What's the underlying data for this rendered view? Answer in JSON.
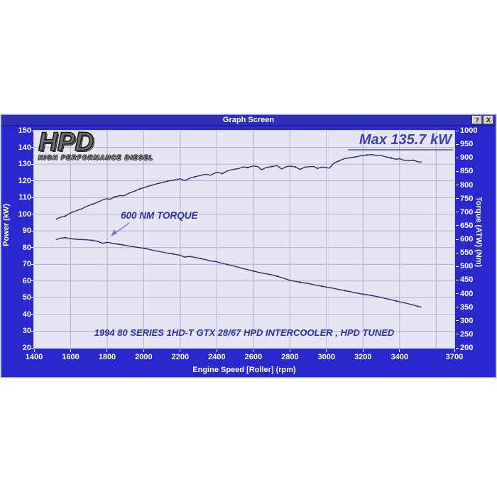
{
  "window": {
    "title": "Graph Screen",
    "help_glyph": "?",
    "close_glyph": "X"
  },
  "logo": {
    "text": "HPD",
    "subtext": "HIGH PERFORMANCE DIESEL"
  },
  "annotations": {
    "max_power": "Max 135.7 kW",
    "max_power_value_kw": 135.7,
    "torque_label": "600 NM TORQUE",
    "vehicle": "1994 80 SERIES 1HD-T GTX 28/67 HPD INTERCOOLER , HPD TUNED"
  },
  "colors": {
    "window_blue": "#2828CC",
    "titlebar_blue": "#2F2FB6",
    "plot_background": "#E5E5F3",
    "gridline": "#B0B0CE",
    "curve": "#2B2B68",
    "annotation_navy": "#31319A",
    "max_annotation": "#3E3EB2",
    "axis_text": "#FFFFFF"
  },
  "chart_data": {
    "type": "line",
    "title": "Graph Screen",
    "xlabel": "Engine Speed [Roller] (rpm)",
    "ylabel_left": "Power (kW)",
    "ylabel_right": "Torque (ATW) (Nm)",
    "x_range": [
      1400,
      3700
    ],
    "x_ticks": [
      1400,
      1600,
      1800,
      2000,
      2200,
      2400,
      2600,
      2800,
      3000,
      3200,
      3400,
      3700
    ],
    "y_left_range": [
      20,
      150
    ],
    "y_left_ticks": [
      20,
      30,
      40,
      50,
      60,
      70,
      80,
      90,
      100,
      110,
      120,
      130,
      140,
      150
    ],
    "y_right_range": [
      200,
      1000
    ],
    "y_right_ticks": [
      200,
      250,
      300,
      350,
      400,
      450,
      500,
      550,
      600,
      650,
      700,
      750,
      800,
      850,
      900,
      950,
      1000
    ],
    "grid": {
      "x_step": 200,
      "y_left_step": 10,
      "grid_on": true
    },
    "legend_position": "none",
    "series": [
      {
        "name": "Power",
        "axis": "left",
        "units": "kW",
        "max_value": 135.7,
        "points": [
          [
            1520,
            97
          ],
          [
            1545,
            98.2
          ],
          [
            1570,
            98.8
          ],
          [
            1600,
            100.8
          ],
          [
            1630,
            102
          ],
          [
            1660,
            103.2
          ],
          [
            1690,
            104.8
          ],
          [
            1720,
            106
          ],
          [
            1750,
            107.3
          ],
          [
            1780,
            108.8
          ],
          [
            1800,
            109.3
          ],
          [
            1815,
            108.9
          ],
          [
            1840,
            110.3
          ],
          [
            1870,
            111.2
          ],
          [
            1890,
            111
          ],
          [
            1920,
            112.6
          ],
          [
            1950,
            113.8
          ],
          [
            1980,
            115.2
          ],
          [
            2010,
            116.2
          ],
          [
            2040,
            117.2
          ],
          [
            2070,
            118.2
          ],
          [
            2100,
            118.9
          ],
          [
            2130,
            119.8
          ],
          [
            2160,
            120.3
          ],
          [
            2200,
            121.2
          ],
          [
            2225,
            120.1
          ],
          [
            2250,
            121.5
          ],
          [
            2280,
            122.4
          ],
          [
            2310,
            123.2
          ],
          [
            2340,
            123.9
          ],
          [
            2365,
            123.3
          ],
          [
            2400,
            125.2
          ],
          [
            2430,
            124.3
          ],
          [
            2460,
            126
          ],
          [
            2490,
            126.8
          ],
          [
            2520,
            127.3
          ],
          [
            2545,
            128.3
          ],
          [
            2570,
            127.9
          ],
          [
            2600,
            128.9
          ],
          [
            2625,
            128.4
          ],
          [
            2645,
            126.6
          ],
          [
            2670,
            127.9
          ],
          [
            2700,
            128.5
          ],
          [
            2730,
            129
          ],
          [
            2755,
            127.1
          ],
          [
            2780,
            128.4
          ],
          [
            2800,
            128.8
          ],
          [
            2830,
            128.3
          ],
          [
            2855,
            126.8
          ],
          [
            2880,
            128.1
          ],
          [
            2900,
            128.4
          ],
          [
            2930,
            128.6
          ],
          [
            2950,
            127.4
          ],
          [
            2975,
            128.2
          ],
          [
            3000,
            127.9
          ],
          [
            3015,
            127.5
          ],
          [
            3040,
            130.5
          ],
          [
            3070,
            132
          ],
          [
            3100,
            133.3
          ],
          [
            3130,
            133.8
          ],
          [
            3160,
            134.3
          ],
          [
            3190,
            135
          ],
          [
            3220,
            135.4
          ],
          [
            3245,
            135.7
          ],
          [
            3270,
            135.3
          ],
          [
            3300,
            135.1
          ],
          [
            3330,
            134.2
          ],
          [
            3355,
            133.6
          ],
          [
            3380,
            132.9
          ],
          [
            3400,
            133.2
          ],
          [
            3420,
            132.4
          ],
          [
            3450,
            132
          ],
          [
            3475,
            132.3
          ],
          [
            3500,
            131.4
          ],
          [
            3520,
            131.2
          ]
        ]
      },
      {
        "name": "Torque",
        "axis": "right",
        "units": "Nm",
        "max_value": 606,
        "points": [
          [
            1520,
            599
          ],
          [
            1545,
            604
          ],
          [
            1570,
            606
          ],
          [
            1600,
            602
          ],
          [
            1630,
            600
          ],
          [
            1660,
            599
          ],
          [
            1690,
            598
          ],
          [
            1720,
            596
          ],
          [
            1750,
            592
          ],
          [
            1775,
            585
          ],
          [
            1800,
            589
          ],
          [
            1830,
            585
          ],
          [
            1860,
            582
          ],
          [
            1890,
            579
          ],
          [
            1920,
            575
          ],
          [
            1950,
            572
          ],
          [
            1980,
            569
          ],
          [
            2010,
            566
          ],
          [
            2040,
            561
          ],
          [
            2070,
            557
          ],
          [
            2100,
            553
          ],
          [
            2130,
            549
          ],
          [
            2160,
            546
          ],
          [
            2200,
            541
          ],
          [
            2225,
            534
          ],
          [
            2250,
            537
          ],
          [
            2280,
            533
          ],
          [
            2310,
            529
          ],
          [
            2340,
            525
          ],
          [
            2365,
            520
          ],
          [
            2400,
            517
          ],
          [
            2430,
            511
          ],
          [
            2460,
            507
          ],
          [
            2490,
            502
          ],
          [
            2520,
            497
          ],
          [
            2545,
            492
          ],
          [
            2570,
            488
          ],
          [
            2600,
            483
          ],
          [
            2625,
            479
          ],
          [
            2645,
            476
          ],
          [
            2670,
            473
          ],
          [
            2700,
            469
          ],
          [
            2730,
            464
          ],
          [
            2755,
            459
          ],
          [
            2780,
            453
          ],
          [
            2800,
            449
          ],
          [
            2830,
            445
          ],
          [
            2855,
            442
          ],
          [
            2880,
            439
          ],
          [
            2900,
            437
          ],
          [
            2930,
            433
          ],
          [
            2950,
            430
          ],
          [
            2975,
            427
          ],
          [
            3000,
            424
          ],
          [
            3015,
            422
          ],
          [
            3040,
            419
          ],
          [
            3070,
            415
          ],
          [
            3100,
            411
          ],
          [
            3130,
            407
          ],
          [
            3160,
            403
          ],
          [
            3190,
            399
          ],
          [
            3220,
            396
          ],
          [
            3245,
            393
          ],
          [
            3270,
            390
          ],
          [
            3300,
            386
          ],
          [
            3330,
            381
          ],
          [
            3355,
            377
          ],
          [
            3380,
            373
          ],
          [
            3400,
            370
          ],
          [
            3420,
            367
          ],
          [
            3450,
            362
          ],
          [
            3475,
            358
          ],
          [
            3500,
            353
          ],
          [
            3520,
            350
          ]
        ]
      }
    ]
  }
}
